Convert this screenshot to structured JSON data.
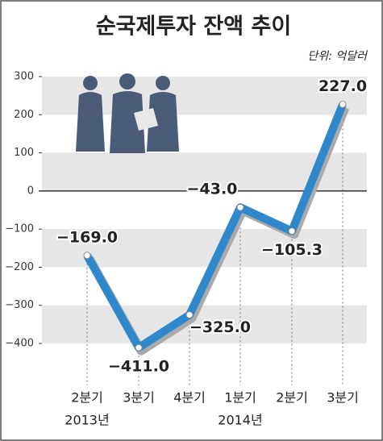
{
  "chart_data": {
    "type": "line",
    "title": "순국제투자 잔액 추이",
    "unit": "단위: 억달러",
    "categories": [
      "2분기",
      "3분기",
      "4분기",
      "1분기",
      "2분기",
      "3분기"
    ],
    "year_labels": [
      "2013년",
      null,
      null,
      "2014년",
      null,
      null
    ],
    "series": [
      {
        "name": "순국제투자 잔액",
        "color": "#2f88cc",
        "values": [
          -169.0,
          -411.0,
          -325.0,
          -43.0,
          -105.3,
          227.0
        ],
        "value_labels": [
          "−169.0",
          "−411.0",
          "−325.0",
          "−43.0",
          "−105.3",
          "227.0"
        ]
      }
    ],
    "ylim": [
      -400,
      300
    ],
    "yticks": [
      300,
      200,
      100,
      0,
      {
        "value": -100,
        "label": "−100"
      },
      {
        "value": -200,
        "label": "−200"
      },
      {
        "value": -300,
        "label": "−300"
      },
      {
        "value": -400,
        "label": "−400"
      }
    ],
    "grid": true
  }
}
